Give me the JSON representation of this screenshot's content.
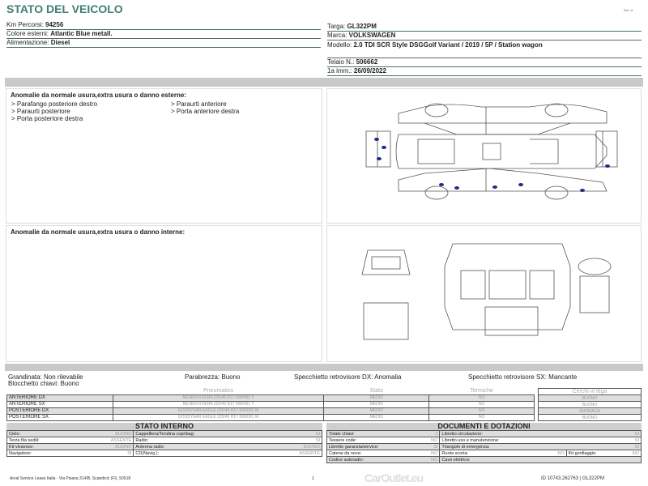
{
  "header": {
    "title": "STATO DEL VEICOLO",
    "rev": "Rev. A"
  },
  "vehicle_left": [
    {
      "label": "Km Percorsi: ",
      "value": "94256"
    },
    {
      "label": "Colore esterni: ",
      "value": "Atlantic Blue metall."
    },
    {
      "label": "Alimentazione: ",
      "value": "Diesel"
    }
  ],
  "vehicle_right": {
    "targa": {
      "label": "Targa: ",
      "value": "GL322PM"
    },
    "marca": {
      "label": "Marca: ",
      "value": "VOLKSWAGEN"
    },
    "modello": {
      "label": "Modello: ",
      "value": "2.0 TDI SCR Style DSGGolf Variant / 2019 / 5P / Station wagon"
    },
    "telaio": {
      "label": "Telaio N.: ",
      "value": "506662"
    },
    "imm": {
      "label": "1a imm.: ",
      "value": "26/09/2022"
    }
  },
  "exterior": {
    "title": "Anomalie da normale usura,extra usura o danno esterne:",
    "col1": [
      "> Parafango posteriore destro",
      "> Paraurti posteriore",
      "> Porta posteriore destra"
    ],
    "col2": [
      "> Paraurti anteriore",
      "> Porta anteriore destra"
    ],
    "damage_marker_color": "#1e2a8c"
  },
  "interior": {
    "title": "Anomalie da normale usura,extra usura o danno interne:"
  },
  "checks": {
    "grandinata": "Grandinata: Non rilevabile",
    "blocchetto": "Blocchetto chiavi: Buono",
    "parabrezza": "Parabrezza: Buono",
    "spec_dx": "Specchietto retrovisore DX: Anomalia",
    "spec_sx": "Specchietto retrovisore SX: Mancante"
  },
  "tires": {
    "headers": [
      "Pneumatico",
      "Stato",
      "Termiche",
      "Cerchi in lega"
    ],
    "rows": [
      {
        "pos": "ANTERIORE DX",
        "tire": "NEXEN N FERA  225/45 R17 000/091 Y",
        "stato": "MEDIO",
        "termiche": "NO",
        "cerchi": "BUONO"
      },
      {
        "pos": "ANTERIORE SX",
        "tire": "NEXEN N FERA  225/45 R17 000/091 Y",
        "stato": "MEDIO",
        "termiche": "NO",
        "cerchi": "BUONO"
      },
      {
        "pos": "POSTERIORE DX",
        "tire": "GOODYEAR EAGLE  225/45 R17 000/091 W",
        "stato": "MEDIO",
        "termiche": "NO",
        "cerchi": "ANOMALIA"
      },
      {
        "pos": "POSTERIORE SX",
        "tire": "GOODYEAR EAGLE  225/45 R17 000/091 W",
        "stato": "MEDIO",
        "termiche": "NO",
        "cerchi": "BUONO"
      }
    ]
  },
  "stato_interno": {
    "title": "STATO INTERNO",
    "rows": [
      [
        [
          "Cielo:",
          "BUONO"
        ],
        [
          "Cappelliera/Tendina copribag:",
          "SI"
        ]
      ],
      [
        [
          "Terza fila sedili:",
          "ASSENTE"
        ],
        [
          "Radio:",
          "SI"
        ]
      ],
      [
        [
          "Kit vivavoce:",
          "BUONO"
        ],
        [
          "Antenna radio:",
          "BUONO"
        ]
      ],
      [
        [
          "Navigatore:",
          "SI"
        ],
        [
          "CD(Navig.):",
          "ASSENTE"
        ]
      ]
    ]
  },
  "documenti": {
    "title": "DOCUMENTI E DOTAZIONI",
    "rows": [
      [
        [
          "Totale chiavi:",
          "2"
        ],
        [
          "Libretto circolazione:",
          "SI"
        ]
      ],
      [
        [
          "Tessere code:",
          "NO"
        ],
        [
          "Libretto uso e manutenzione:",
          "SI"
        ]
      ],
      [
        [
          "Libretto garanzia/service:",
          "SI"
        ],
        [
          "Triangolo di emergenza:",
          "SI"
        ]
      ],
      [
        [
          "Catene da neve:",
          "NO"
        ],
        [
          "Ruota scorta:",
          "NO"
        ],
        [
          "Kit gonfiaggio:",
          "NO"
        ]
      ],
      [
        [
          "Codice autoradio:",
          "NO"
        ],
        [
          "Cavo elettrico:",
          ""
        ]
      ]
    ]
  },
  "footer": {
    "address": "Arval Service Lease Italia - Via Pisana 314/B, Scandicci (FI), 50018",
    "page": "1",
    "doc_id": "ID 10743.262763 | GL322PM",
    "watermark": "CarOutlet.eu"
  }
}
